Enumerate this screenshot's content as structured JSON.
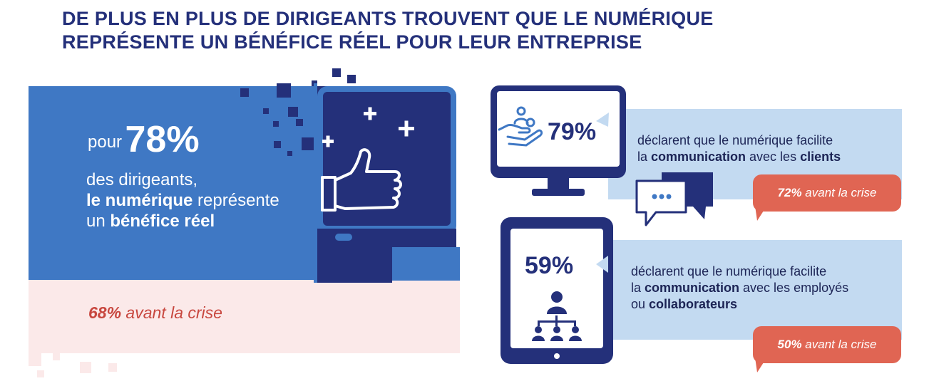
{
  "title": {
    "line1": "DE PLUS EN PLUS DE DIRIGEANTS TROUVENT QUE LE NUMÉRIQUE",
    "line2": "REPRÉSENTE UN BÉNÉFICE RÉEL POUR LEUR ENTREPRISE"
  },
  "left": {
    "pour": "pour",
    "percent": "78%",
    "line1": "des dirigeants,",
    "line2_bold": "le numérique",
    "line2_rest": " représente",
    "line3_start": "un ",
    "line3_bold": "bénéfice réel",
    "before_pct": "68%",
    "before_text": " avant la crise"
  },
  "clients": {
    "percent": "79%",
    "t1": "déclarent que le numérique facilite",
    "t2_a": "la ",
    "t2_b": "communication",
    "t2_c": " avec les ",
    "t2_d": "clients",
    "before_pct": "72%",
    "before_text": " avant la crise"
  },
  "employees": {
    "percent": "59%",
    "t1": "déclarent que le numérique facilite",
    "t2_a": "la ",
    "t2_b": "communication",
    "t2_c": " avec les employés",
    "t3_a": "ou ",
    "t3_b": "collaborateurs",
    "before_pct": "50%",
    "before_text": " avant la crise"
  },
  "colors": {
    "navy": "#24307a",
    "blue": "#3f78c4",
    "light_blue": "#c3daf1",
    "coral": "#e06553",
    "pink": "#fbe9e9"
  },
  "icons": [
    "thumbs-up-icon",
    "plus-icon",
    "hand-with-person-icon",
    "chat-bubbles-icon",
    "org-chart-icon",
    "monitor-icon",
    "tablet-icon"
  ]
}
